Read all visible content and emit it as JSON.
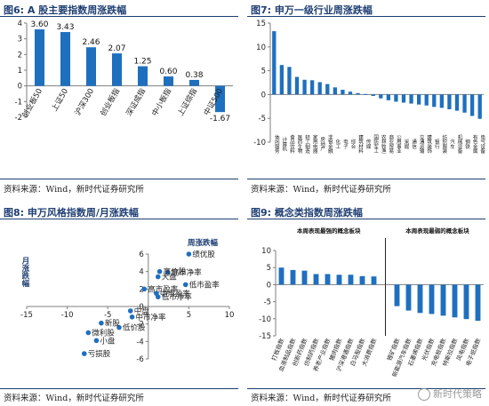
{
  "panels": {
    "p6": {
      "title": "图6:  A 股主要指数周涨跌幅",
      "source": "资料来源：Wind，新时代证券研究所"
    },
    "p7": {
      "title": "图7:    申万一级行业周涨跌幅",
      "source": "资料来源：Wind，新时代证券研究所"
    },
    "p8": {
      "title": "图8:    申万风格指数周/月涨跌幅",
      "source": "资料来源：Wind，新时代证券研究所"
    },
    "p9": {
      "title": "图9:    概念类指数周涨跌幅",
      "source": "资料来源：Wind，新时代证券研究所"
    }
  },
  "watermark": "新时代策略",
  "colors": {
    "bar": "#1f6fbf",
    "dot": "#1f6fbf",
    "title": "#1f3f73",
    "axis": "#7f7f7f"
  },
  "chart_data": [
    {
      "id": "p6",
      "type": "bar",
      "categories": [
        "创业板50",
        "上证50",
        "沪深300",
        "创业板指",
        "深证成指",
        "中小板指",
        "上证综指",
        "中证500"
      ],
      "values": [
        3.6,
        3.43,
        2.46,
        2.07,
        1.25,
        0.6,
        0.38,
        -1.67
      ],
      "data_labels": [
        "3.60",
        "3.43",
        "2.46",
        "2.07",
        "1.25",
        "0.60",
        "0.38",
        "-1.67"
      ],
      "ylim": [
        -2,
        4
      ],
      "yticks": [
        "-2",
        "-1",
        "0",
        "1",
        "2",
        "3",
        "4"
      ]
    },
    {
      "id": "p7",
      "type": "bar",
      "categories": [
        "休闲服务",
        "计算机",
        "食品饮料",
        "医药生物",
        "轻工制造",
        "家用电器",
        "房地产",
        "非银金融",
        "化工",
        "电子",
        "综合",
        "建筑材料",
        "传媒",
        "国防军工",
        "农林牧渔",
        "商业贸易",
        "公用事业",
        "采掘",
        "通信",
        "交通运输",
        "建筑装饰",
        "银行",
        "纺织服装",
        "汽车",
        "机械设备",
        "钢铁",
        "有色金属",
        "电气设备"
      ],
      "values": [
        13.3,
        6.2,
        5.8,
        3.7,
        3.1,
        3.0,
        2.6,
        2.2,
        1.5,
        1.0,
        0.6,
        0.3,
        0.1,
        -0.3,
        -0.8,
        -1.2,
        -1.5,
        -1.7,
        -1.9,
        -2.1,
        -2.3,
        -2.6,
        -2.8,
        -3.1,
        -3.4,
        -3.8,
        -4.5,
        -5.1
      ],
      "ylim": [
        -10,
        15
      ],
      "yticks": [
        "-10",
        "-5",
        "0",
        "5",
        "10",
        "15"
      ]
    },
    {
      "id": "p8",
      "type": "scatter",
      "xlabel": "周涨跌幅",
      "ylabel": "月涨跌幅",
      "xlim": [
        -15,
        10
      ],
      "ylim": [
        -6,
        6
      ],
      "xticks": [
        "-15",
        "-10",
        "-5",
        "0",
        "5",
        "10"
      ],
      "yticks": [
        "-6",
        "-4",
        "-2",
        "0",
        "2",
        "4",
        "6"
      ],
      "points": [
        {
          "label": "绩优股",
          "x": 5.0,
          "y": 6.0
        },
        {
          "label": "高市净率",
          "x": 2.4,
          "y": 3.9
        },
        {
          "label": "高价股",
          "x": 1.4,
          "y": 4.0
        },
        {
          "label": "大盘",
          "x": 1.2,
          "y": 3.4
        },
        {
          "label": "低市盈率",
          "x": 4.6,
          "y": 2.5
        },
        {
          "label": "中市盈率",
          "x": 1.0,
          "y": 1.5
        },
        {
          "label": "高市盈率",
          "x": -0.5,
          "y": 2.0
        },
        {
          "label": "低市净率",
          "x": 1.2,
          "y": 1.1
        },
        {
          "label": "中盘",
          "x": -2.2,
          "y": -0.5
        },
        {
          "label": "中市净率",
          "x": -2.0,
          "y": -1.2
        },
        {
          "label": "低价股",
          "x": -3.6,
          "y": -2.4
        },
        {
          "label": "新股",
          "x": -5.8,
          "y": -1.9
        },
        {
          "label": "微利股",
          "x": -7.4,
          "y": -3.0
        },
        {
          "label": "小盘",
          "x": -6.4,
          "y": -3.9
        },
        {
          "label": "亏损股",
          "x": -7.9,
          "y": -5.4
        }
      ]
    },
    {
      "id": "p9",
      "type": "bar",
      "annotations": [
        "本周表现最强的概念板块",
        "本周表现最弱的概念板块"
      ],
      "categories": [
        "打板指数",
        "血液制品指数",
        "创新药指数",
        "仿制药指数",
        "养老产业指数",
        "猪肉指数",
        "沪深港通指数",
        "白马股指数",
        "大消费指数",
        "",
        "锂矿指数",
        "新能源汽车指数",
        "石墨烯指数",
        "光伏指数",
        "充电桩指数",
        "特斯拉指数",
        "风电指数",
        "电子纸指数"
      ],
      "values": [
        5.0,
        4.3,
        4.1,
        3.1,
        3.1,
        2.9,
        2.9,
        2.5,
        2.4,
        0,
        -6.3,
        -7.6,
        -8.3,
        -8.6,
        -9.1,
        -9.6,
        -10.1,
        -10.6
      ],
      "ylim": [
        -15,
        10
      ],
      "yticks": [
        "-15",
        "-10",
        "-5",
        "0",
        "5",
        "10"
      ]
    }
  ]
}
